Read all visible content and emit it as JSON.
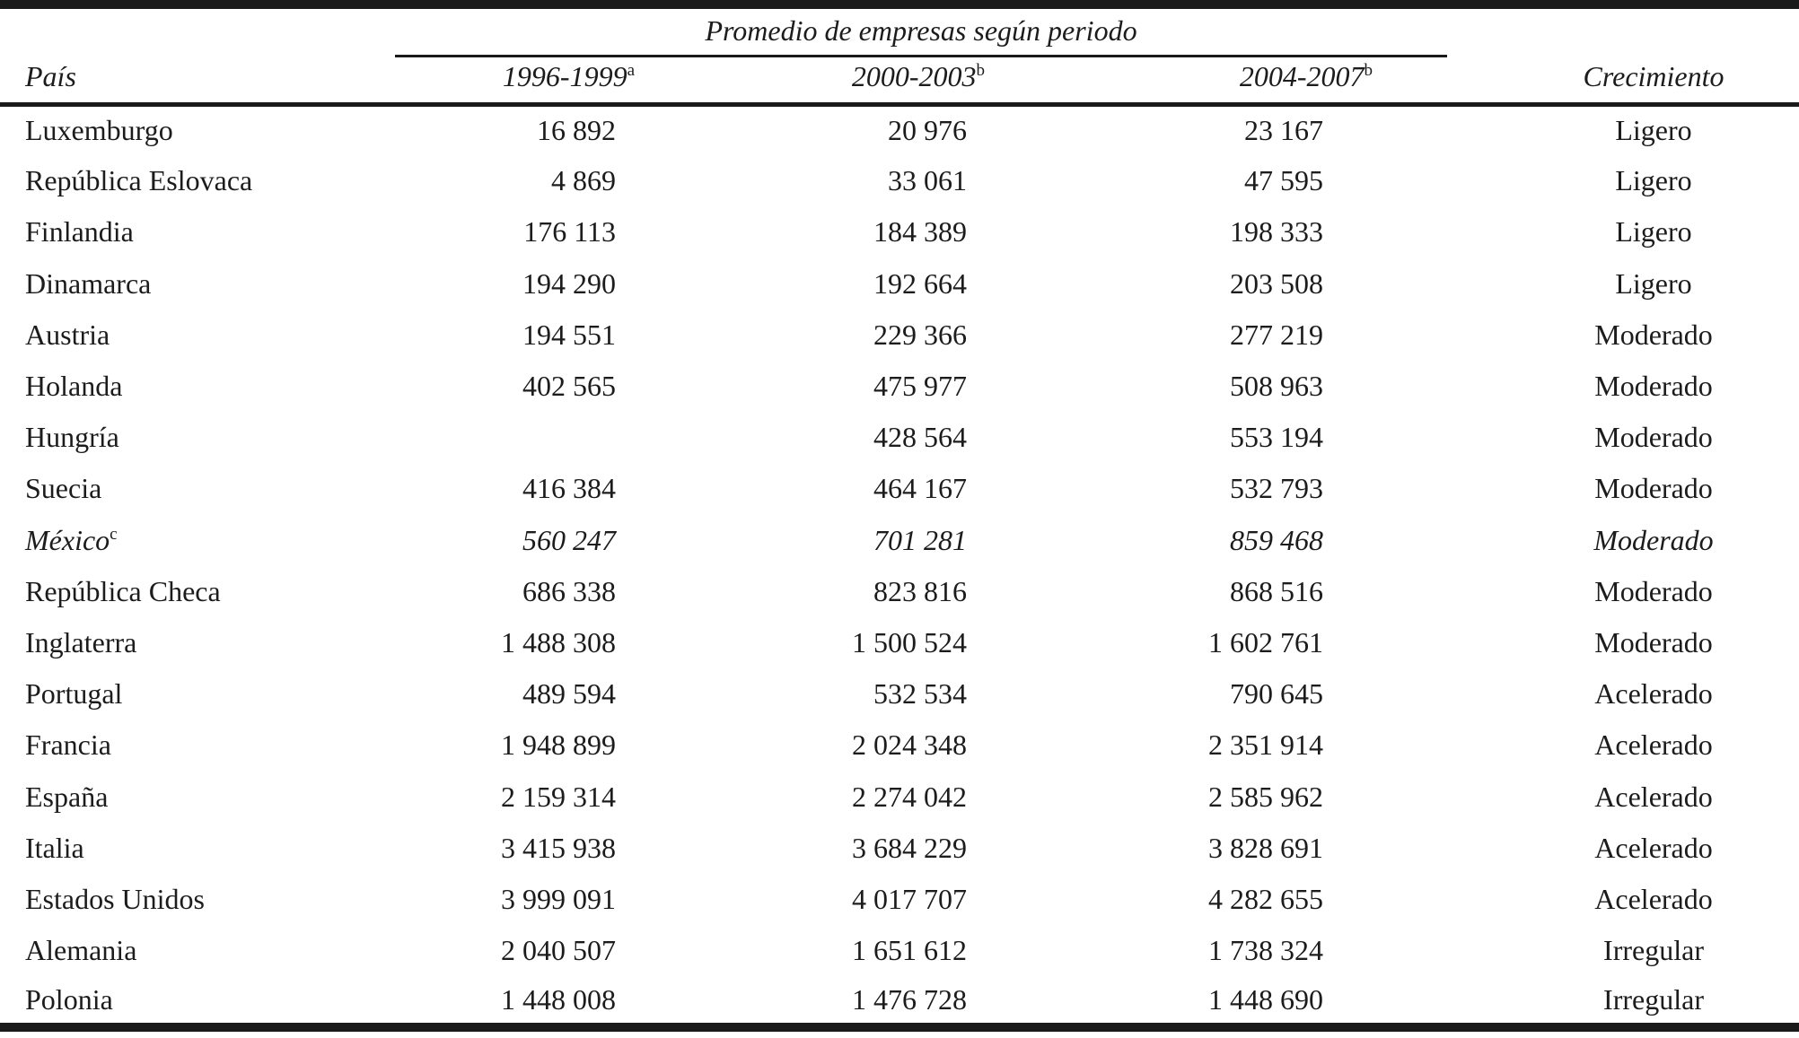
{
  "table": {
    "spanner": "Promedio de empresas según periodo",
    "headers": {
      "country": "País",
      "period1": "1996-1999",
      "period1_note": "a",
      "period2": "2000-2003",
      "period2_note": "b",
      "period3": "2004-2007",
      "period3_note": "b",
      "growth": "Crecimiento"
    },
    "rows": [
      {
        "country": "Luxemburgo",
        "note": "",
        "p1": "16 892",
        "p2": "20 976",
        "p3": "23 167",
        "growth": "Ligero",
        "italic": false
      },
      {
        "country": "República Eslovaca",
        "note": "",
        "p1": "4 869",
        "p2": "33 061",
        "p3": "47 595",
        "growth": "Ligero",
        "italic": false
      },
      {
        "country": "Finlandia",
        "note": "",
        "p1": "176 113",
        "p2": "184 389",
        "p3": "198 333",
        "growth": "Ligero",
        "italic": false
      },
      {
        "country": "Dinamarca",
        "note": "",
        "p1": "194 290",
        "p2": "192 664",
        "p3": "203 508",
        "growth": "Ligero",
        "italic": false
      },
      {
        "country": "Austria",
        "note": "",
        "p1": "194 551",
        "p2": "229 366",
        "p3": "277 219",
        "growth": "Moderado",
        "italic": false
      },
      {
        "country": "Holanda",
        "note": "",
        "p1": "402 565",
        "p2": "475 977",
        "p3": "508 963",
        "growth": "Moderado",
        "italic": false
      },
      {
        "country": "Hungría",
        "note": "",
        "p1": "",
        "p2": "428 564",
        "p3": "553 194",
        "growth": "Moderado",
        "italic": false
      },
      {
        "country": "Suecia",
        "note": "",
        "p1": "416 384",
        "p2": "464 167",
        "p3": "532 793",
        "growth": "Moderado",
        "italic": false
      },
      {
        "country": "México",
        "note": "c",
        "p1": "560 247",
        "p2": "701 281",
        "p3": "859 468",
        "growth": "Moderado",
        "italic": true
      },
      {
        "country": "República Checa",
        "note": "",
        "p1": "686 338",
        "p2": "823 816",
        "p3": "868 516",
        "growth": "Moderado",
        "italic": false
      },
      {
        "country": "Inglaterra",
        "note": "",
        "p1": "1 488 308",
        "p2": "1 500 524",
        "p3": "1 602 761",
        "growth": "Moderado",
        "italic": false
      },
      {
        "country": "Portugal",
        "note": "",
        "p1": "489 594",
        "p2": "532 534",
        "p3": "790 645",
        "growth": "Acelerado",
        "italic": false
      },
      {
        "country": "Francia",
        "note": "",
        "p1": "1 948 899",
        "p2": "2 024 348",
        "p3": "2 351 914",
        "growth": "Acelerado",
        "italic": false
      },
      {
        "country": "España",
        "note": "",
        "p1": "2 159 314",
        "p2": "2 274 042",
        "p3": "2 585 962",
        "growth": "Acelerado",
        "italic": false
      },
      {
        "country": "Italia",
        "note": "",
        "p1": "3 415 938",
        "p2": "3 684 229",
        "p3": "3 828 691",
        "growth": "Acelerado",
        "italic": false
      },
      {
        "country": "Estados Unidos",
        "note": "",
        "p1": "3 999 091",
        "p2": "4 017 707",
        "p3": "4 282 655",
        "growth": "Acelerado",
        "italic": false
      },
      {
        "country": "Alemania",
        "note": "",
        "p1": "2 040 507",
        "p2": "1 651 612",
        "p3": "1 738 324",
        "growth": "Irregular",
        "italic": false
      },
      {
        "country": "Polonia",
        "note": "",
        "p1": "1 448 008",
        "p2": "1 476 728",
        "p3": "1 448 690",
        "growth": "Irregular",
        "italic": false
      }
    ]
  },
  "chart_data": {
    "type": "table",
    "title": "Promedio de empresas según periodo",
    "columns": [
      "País",
      "1996-1999 (a)",
      "2000-2003 (b)",
      "2004-2007 (b)",
      "Crecimiento"
    ],
    "rows": [
      [
        "Luxemburgo",
        16892,
        20976,
        23167,
        "Ligero"
      ],
      [
        "República Eslovaca",
        4869,
        33061,
        47595,
        "Ligero"
      ],
      [
        "Finlandia",
        176113,
        184389,
        198333,
        "Ligero"
      ],
      [
        "Dinamarca",
        194290,
        192664,
        203508,
        "Ligero"
      ],
      [
        "Austria",
        194551,
        229366,
        277219,
        "Moderado"
      ],
      [
        "Holanda",
        402565,
        475977,
        508963,
        "Moderado"
      ],
      [
        "Hungría",
        null,
        428564,
        553194,
        "Moderado"
      ],
      [
        "Suecia",
        416384,
        464167,
        532793,
        "Moderado"
      ],
      [
        "México (c)",
        560247,
        701281,
        859468,
        "Moderado"
      ],
      [
        "República Checa",
        686338,
        823816,
        868516,
        "Moderado"
      ],
      [
        "Inglaterra",
        1488308,
        1500524,
        1602761,
        "Moderado"
      ],
      [
        "Portugal",
        489594,
        532534,
        790645,
        "Acelerado"
      ],
      [
        "Francia",
        1948899,
        2024348,
        2351914,
        "Acelerado"
      ],
      [
        "España",
        2159314,
        2274042,
        2585962,
        "Acelerado"
      ],
      [
        "Italia",
        3415938,
        3684229,
        3828691,
        "Acelerado"
      ],
      [
        "Estados Unidos",
        3999091,
        4017707,
        4282655,
        "Acelerado"
      ],
      [
        "Alemania",
        2040507,
        1651612,
        1738324,
        "Irregular"
      ],
      [
        "Polonia",
        1448008,
        1476728,
        1448690,
        "Irregular"
      ]
    ]
  }
}
